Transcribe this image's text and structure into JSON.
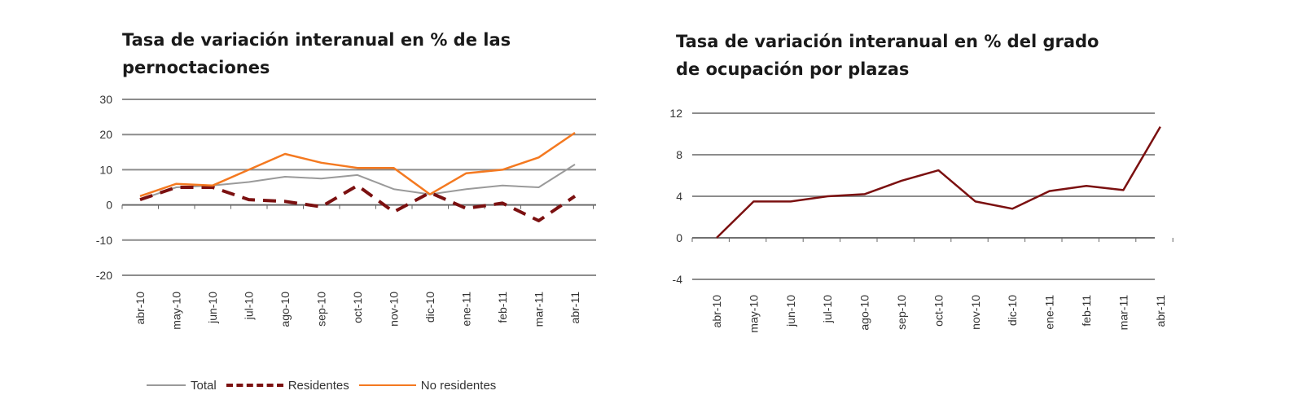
{
  "colors": {
    "total": "#9a9a9a",
    "residentes": "#7b1010",
    "no_residentes": "#f47920",
    "ocupacion": "#7b1010",
    "grid": "#8c8c8c"
  },
  "chart_data": [
    {
      "type": "line",
      "title_lines": [
        "Tasa de variación interanual en % de las",
        "pernoctaciones"
      ],
      "categories": [
        "abr-10",
        "may-10",
        "jun-10",
        "jul-10",
        "ago-10",
        "sep-10",
        "oct-10",
        "nov-10",
        "dic-10",
        "ene-11",
        "feb-11",
        "mar-11",
        "abr-11"
      ],
      "ylim": [
        -20,
        30
      ],
      "yticks": [
        "30",
        "20",
        "10",
        "0",
        "-10",
        "-20"
      ],
      "grid": true,
      "legend_position": "bottom",
      "series": [
        {
          "name": "Total",
          "style": "solid",
          "values": [
            1.5,
            5.0,
            5.5,
            6.5,
            8.0,
            7.5,
            8.5,
            4.5,
            3.0,
            4.5,
            5.5,
            5.0,
            11.5
          ]
        },
        {
          "name": "Residentes",
          "style": "dashed",
          "values": [
            1.5,
            5.0,
            5.0,
            1.5,
            1.0,
            -0.5,
            5.5,
            -2.0,
            3.5,
            -1.0,
            0.5,
            -4.5,
            2.5
          ]
        },
        {
          "name": "No residentes",
          "style": "solid",
          "values": [
            2.5,
            6.0,
            5.5,
            10.0,
            14.5,
            12.0,
            10.5,
            10.5,
            3.0,
            9.0,
            10.0,
            13.5,
            20.5
          ]
        }
      ]
    },
    {
      "type": "line",
      "title_lines": [
        "Tasa de variación interanual en % del grado",
        "de ocupación por plazas"
      ],
      "categories": [
        "abr-10",
        "may-10",
        "jun-10",
        "jul-10",
        "ago-10",
        "sep-10",
        "oct-10",
        "nov-10",
        "dic-10",
        "ene-11",
        "feb-11",
        "mar-11",
        "abr-11"
      ],
      "ylim": [
        -4,
        12
      ],
      "yticks": [
        "12",
        "8",
        "4",
        "0",
        "-4"
      ],
      "grid": true,
      "series": [
        {
          "values": [
            0.0,
            3.5,
            3.5,
            4.0,
            4.2,
            5.5,
            6.5,
            3.5,
            2.8,
            4.5,
            5.0,
            4.6,
            10.7
          ]
        }
      ]
    }
  ]
}
